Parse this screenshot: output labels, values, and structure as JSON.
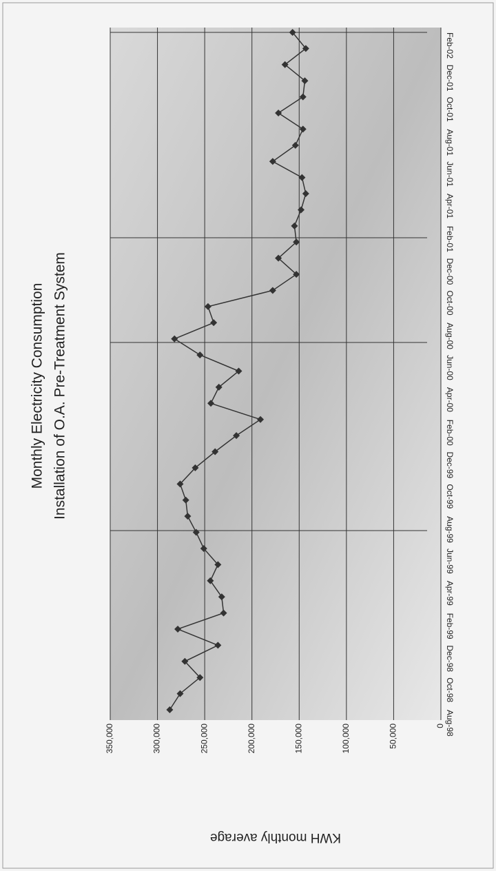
{
  "chart_data": {
    "type": "line",
    "title": "Monthly Electricity Consumption",
    "subtitle": "Installation of O.A. Pre-Treatment System",
    "y_label": "KWH monthly average",
    "categories": [
      "Aug-98",
      null,
      "Oct-98",
      null,
      "Dec-98",
      null,
      "Feb-99",
      null,
      "Apr-99",
      null,
      "Jun-99",
      null,
      "Aug-99",
      null,
      "Oct-99",
      null,
      "Dec-99",
      null,
      "Feb-00",
      null,
      "Apr-00",
      null,
      "Jun-00",
      null,
      "Aug-00",
      null,
      "Oct-00",
      null,
      "Dec-00",
      null,
      "Feb-01",
      null,
      "Apr-01",
      null,
      "Jun-01",
      null,
      "Aug-01",
      null,
      "Oct-01",
      null,
      "Dec-01",
      null,
      "Feb-02"
    ],
    "series": [
      {
        "name": "KWH monthly average",
        "color": "#333333",
        "values": [
          287000,
          276000,
          255000,
          271000,
          236000,
          278500,
          230000,
          232000,
          244000,
          236000,
          251000,
          259000,
          268000,
          270000,
          276000,
          260000,
          239000,
          216500,
          191000,
          243500,
          235000,
          214000,
          255000,
          282000,
          240500,
          246500,
          178000,
          153000,
          172000,
          153000,
          155000,
          148000,
          143000,
          147000,
          178000,
          154000,
          146000,
          172000,
          146000,
          144000,
          165000,
          143000,
          157000
        ]
      }
    ],
    "ylim": [
      0,
      350000
    ],
    "yticks": [
      0,
      {
        "value": 50000,
        "label": "50,000"
      },
      {
        "value": 100000,
        "label": "100,000"
      },
      {
        "value": 150000,
        "label": "150,000"
      },
      {
        "value": 200000,
        "label": "200,000"
      },
      {
        "value": 250000,
        "label": "250,000"
      },
      {
        "value": 300000,
        "label": "300,000"
      },
      {
        "value": 350000,
        "label": "350,000"
      }
    ],
    "grid": true
  }
}
